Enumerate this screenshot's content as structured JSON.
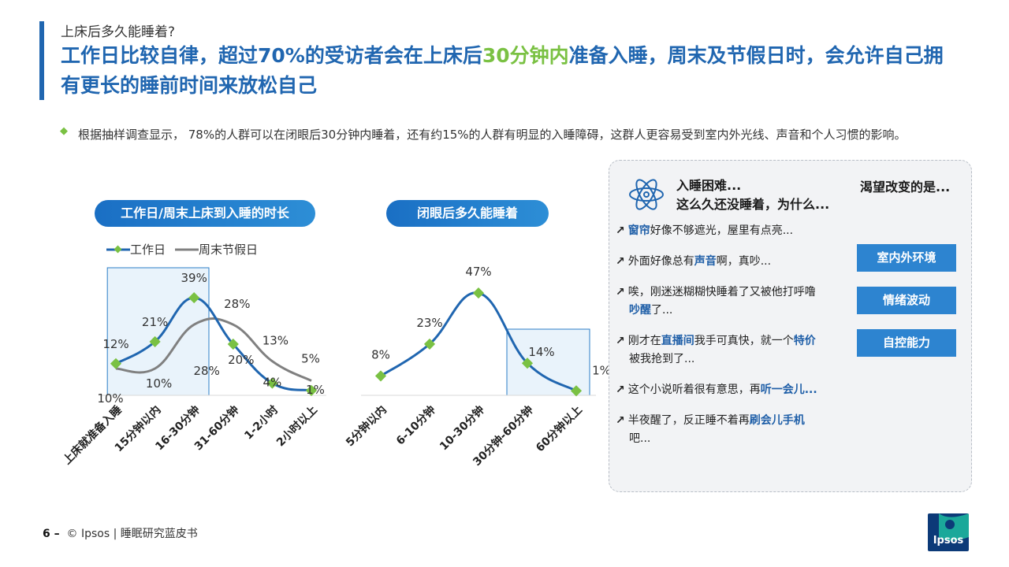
{
  "colors": {
    "accent_blue": "#2066b0",
    "pill_gradient_start": "#1a6fc4",
    "pill_gradient_end": "#2d8ed6",
    "green_highlight": "#7ac143",
    "marker_green": "#7ac143",
    "series_gray": "#808080",
    "box_fill": "#e9f3fb",
    "box_stroke": "#2a7cc7",
    "factor_fill": "#2d84d0",
    "keyword_blue": "#1f5fa8",
    "logo_teal": "#1ba89a",
    "logo_navy": "#0c3a78"
  },
  "header": {
    "kicker": "上床后多久能睡着?",
    "title_part1": "工作日比较自律，超过70%的受访者会在上床后",
    "title_highlight": "30分钟内",
    "title_part2": "准备入睡，周末及节假日时，会允许自己拥有更长的睡前时间来放松自己"
  },
  "intro": {
    "bullet_icon": "diamond-bullet-icon",
    "text": "根据抽样调查显示， 78%的人群可以在闭眼后30分钟内睡着，还有约15%的人群有明显的入睡障碍，这群人更容易受到室内外光线、声音和个人习惯的影响。"
  },
  "chart1_title": "工作日/周末上床到入睡的时长",
  "chart2_title": "闭眼后多久能睡着",
  "chart_data": [
    {
      "type": "line",
      "title": "工作日/周末上床到入睡的时长",
      "categories": [
        "上床就准备入睡",
        "15分钟以内",
        "16-30分钟",
        "31-60分钟",
        "1-2小时",
        "2小时以上"
      ],
      "series": [
        {
          "name": "工作日",
          "values": [
            12,
            21,
            39,
            20,
            4,
            1
          ],
          "labels": [
            "12%",
            "21%",
            "39%",
            "20%",
            "4%",
            "1%"
          ]
        },
        {
          "name": "周末节假日",
          "values": [
            10,
            10,
            28,
            28,
            13,
            5
          ],
          "labels": [
            "10%",
            "10%",
            "28%",
            "28%",
            "13%",
            "5%"
          ]
        }
      ],
      "legend_position": "top-left",
      "highlight_categories": [
        "上床就准备入睡",
        "15分钟以内",
        "16-30分钟"
      ]
    },
    {
      "type": "line",
      "title": "闭眼后多久能睡着",
      "categories": [
        "5分钟以内",
        "6-10分钟",
        "10-30分钟",
        "30分钟-60分钟",
        "60分钟以上"
      ],
      "series": [
        {
          "values": [
            8,
            23,
            47,
            14,
            1
          ],
          "labels": [
            "8%",
            "23%",
            "47%",
            "14%",
            "1%"
          ]
        }
      ],
      "highlight_categories": [
        "30分钟-60分钟",
        "60分钟以上"
      ]
    }
  ],
  "panel": {
    "icon": "atom-brain-icon",
    "heading_line1": "入睡困难...",
    "heading_line2": "这么久还没睡着，为什么...",
    "desire_heading": "渴望改变的是...",
    "arrow_icon": "arrow-up-right-icon",
    "quotes": [
      {
        "keyword": "窗帘",
        "after": "好像不够遮光，屋里有点亮..."
      },
      {
        "before": "外面好像总有",
        "keyword": "声音",
        "after": "啊，真吵..."
      },
      {
        "before": "唉，刚迷迷糊糊快睡着了又被他打呼噜",
        "keyword": "吵醒",
        "after": "了..."
      },
      {
        "before": "刚才在",
        "keyword": "直播间",
        "middle": "我手可真快，就一个",
        "keyword2": "特价",
        "after": "被我抢到了..."
      },
      {
        "before": "这个小说听着很有意思，再",
        "keyword": "听一会儿..."
      },
      {
        "before": "半夜醒了，反正睡不着再",
        "keyword": "刷会儿手机",
        "after": "吧..."
      }
    ],
    "factors": [
      "室内外环境",
      "情绪波动",
      "自控能力"
    ]
  },
  "footer": {
    "page_number": "6 –",
    "copyright": "© Ipsos | 睡眠研究蓝皮书"
  },
  "logo": {
    "text": "Ipsos"
  }
}
